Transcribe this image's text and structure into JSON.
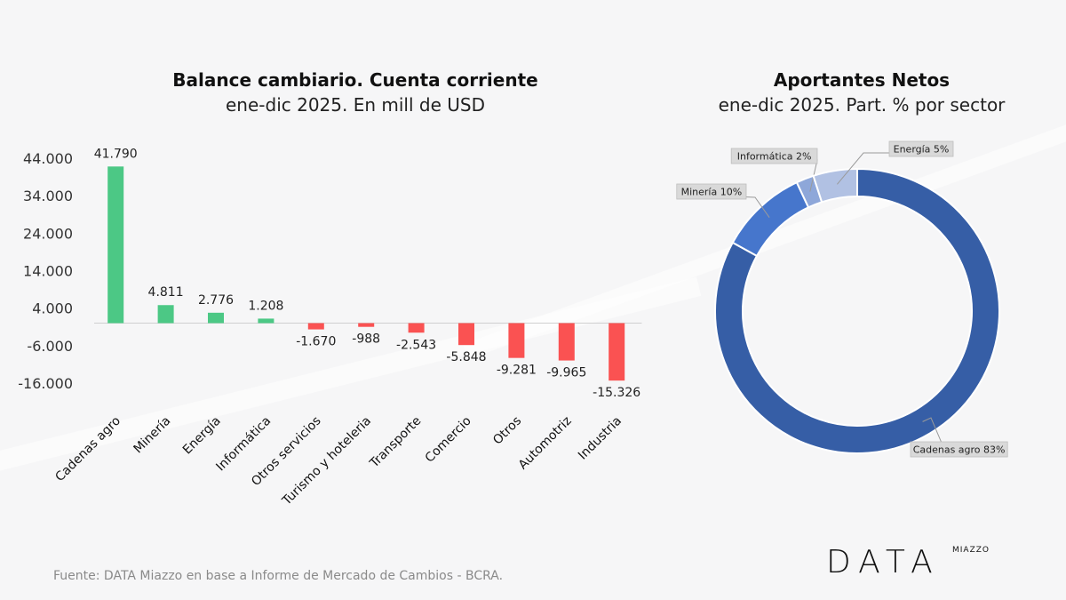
{
  "bar_title": "Balance cambiario. Cuenta corriente",
  "bar_subtitle": "ene-dic 2025. En mill de USD",
  "donut_title": "Aportantes Netos",
  "donut_subtitle": "ene-dic 2025. Part. % por sector",
  "footer": "Fuente: DATA Miazzo en base a Informe de Mercado de Cambios - BCRA.",
  "logo": {
    "word": "DATA",
    "small": "MIAZZO"
  },
  "colors": {
    "positive": "#4cc885",
    "negative": "#fa5252",
    "axis": "#d0d0d0"
  },
  "chart_data": [
    {
      "type": "bar",
      "title": "Balance cambiario. Cuenta corriente",
      "subtitle": "ene-dic 2025. En mill de USD",
      "categories": [
        "Cadenas agro",
        "Minería",
        "Energía",
        "Informática",
        "Otros servicios",
        "Turismo y hoteleria",
        "Transporte",
        "Comercio",
        "Otros",
        "Automotriz",
        "Industria"
      ],
      "values": [
        41790,
        4811,
        2776,
        1208,
        -1670,
        -988,
        -2543,
        -5848,
        -9281,
        -9965,
        -15326
      ],
      "value_labels": [
        "41.790",
        "4.811",
        "2.776",
        "1.208",
        "-1.670",
        "-988",
        "-2.543",
        "-5.848",
        "-9.281",
        "-9.965",
        "-15.326"
      ],
      "yticks": [
        44000,
        34000,
        24000,
        14000,
        4000,
        -6000,
        -16000
      ],
      "ytick_labels": [
        "44.000",
        "34.000",
        "24.000",
        "14.000",
        "4.000",
        "-6.000",
        "-16.000"
      ],
      "ylim": [
        -16000,
        44000
      ]
    },
    {
      "type": "pie",
      "title": "Aportantes Netos",
      "subtitle": "ene-dic 2025. Part. % por sector",
      "slices": [
        {
          "label": "Cadenas agro 83%",
          "value": 83,
          "color": "#365ea6"
        },
        {
          "label": "Minería 10%",
          "value": 10,
          "color": "#4676cc"
        },
        {
          "label": "Informática 2%",
          "value": 2,
          "color": "#8ea7d9"
        },
        {
          "label": "Energía 5%",
          "value": 5,
          "color": "#b1c1e3"
        }
      ]
    }
  ]
}
